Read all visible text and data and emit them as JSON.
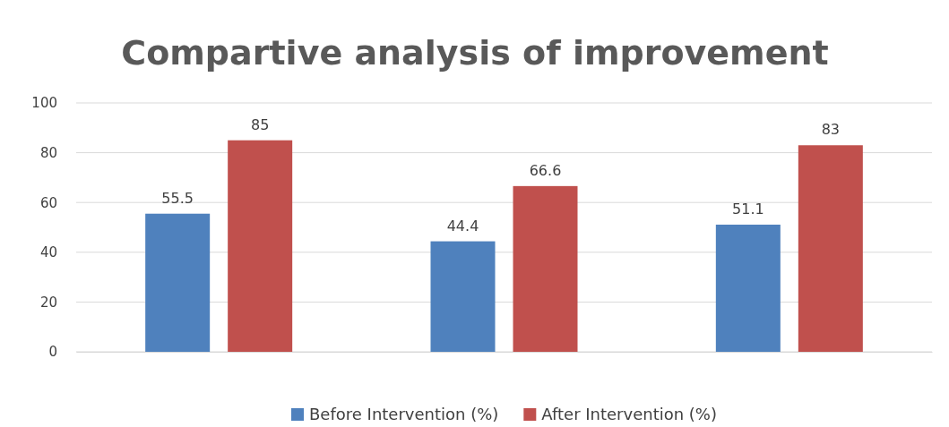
{
  "chart_data": {
    "type": "bar",
    "title": "Compartive analysis of improvement",
    "categories": [
      null,
      null,
      null
    ],
    "series": [
      {
        "name": "Before Intervention (%)",
        "color": "#4f81bd",
        "values": [
          55.5,
          44.4,
          51.1
        ]
      },
      {
        "name": "After Intervention (%)",
        "color": "#c0504d",
        "values": [
          85,
          66.6,
          83
        ]
      }
    ],
    "ylim": [
      0,
      100
    ],
    "yticks": [
      0,
      20,
      40,
      60,
      80,
      100
    ],
    "grid": "y",
    "legend": "bottom",
    "data_labels": true
  }
}
